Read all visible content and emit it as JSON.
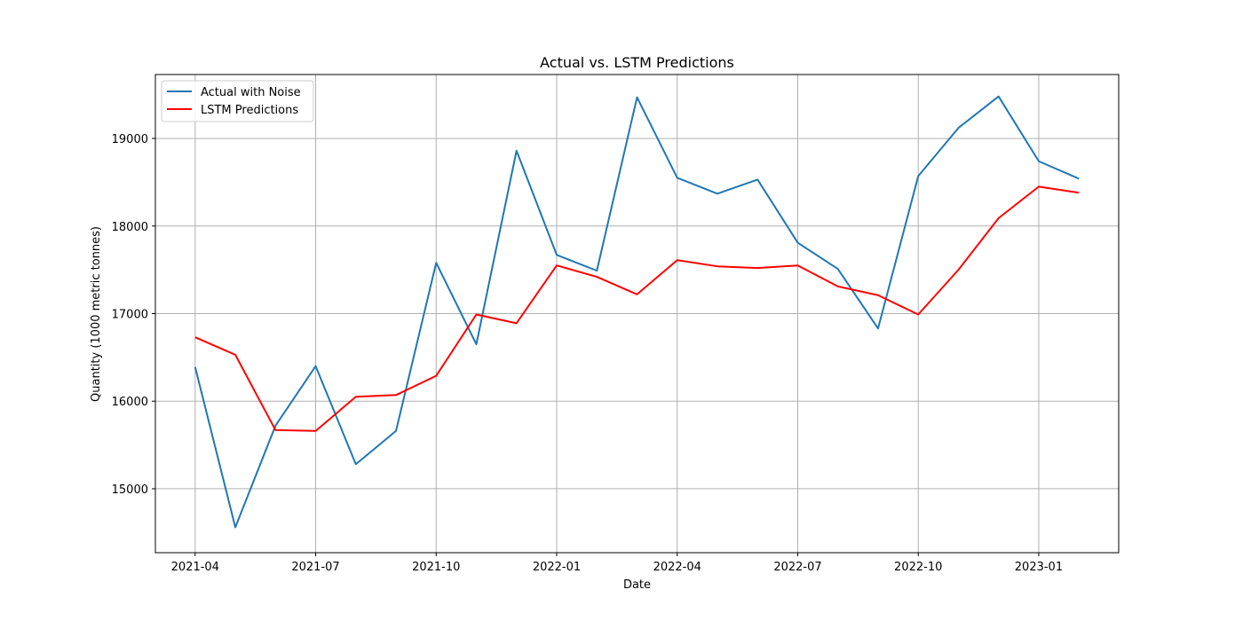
{
  "chart_data": {
    "type": "line",
    "title": "Actual vs. LSTM Predictions",
    "xlabel": "Date",
    "ylabel": "Quantity (1000 metric tonnes)",
    "x": [
      "2021-04",
      "2021-05",
      "2021-06",
      "2021-07",
      "2021-08",
      "2021-09",
      "2021-10",
      "2021-11",
      "2021-12",
      "2022-01",
      "2022-02",
      "2022-03",
      "2022-04",
      "2022-05",
      "2022-06",
      "2022-07",
      "2022-08",
      "2022-09",
      "2022-10",
      "2022-11",
      "2022-12",
      "2023-01",
      "2023-02"
    ],
    "x_tick_labels": [
      "2021-04",
      "2021-07",
      "2021-10",
      "2022-01",
      "2022-04",
      "2022-07",
      "2022-10",
      "2023-01"
    ],
    "y_ticks": [
      15000,
      16000,
      17000,
      18000,
      19000
    ],
    "ylim": [
      14270,
      19730
    ],
    "grid": true,
    "legend_position": "top-left",
    "series": [
      {
        "name": "Actual with Noise",
        "color": "#1f77b4",
        "values": [
          16390,
          14560,
          15720,
          16400,
          15280,
          15660,
          17580,
          16650,
          18860,
          17670,
          17490,
          19470,
          18550,
          18370,
          18530,
          17810,
          17510,
          16830,
          18570,
          19120,
          19480,
          18740,
          18540
        ]
      },
      {
        "name": "LSTM Predictions",
        "color": "#ff0000",
        "values": [
          16730,
          16530,
          15670,
          15660,
          16050,
          16070,
          16290,
          16990,
          16890,
          17550,
          17420,
          17220,
          17610,
          17540,
          17520,
          17550,
          17310,
          17210,
          16990,
          17500,
          18090,
          18450,
          18380
        ]
      }
    ]
  }
}
